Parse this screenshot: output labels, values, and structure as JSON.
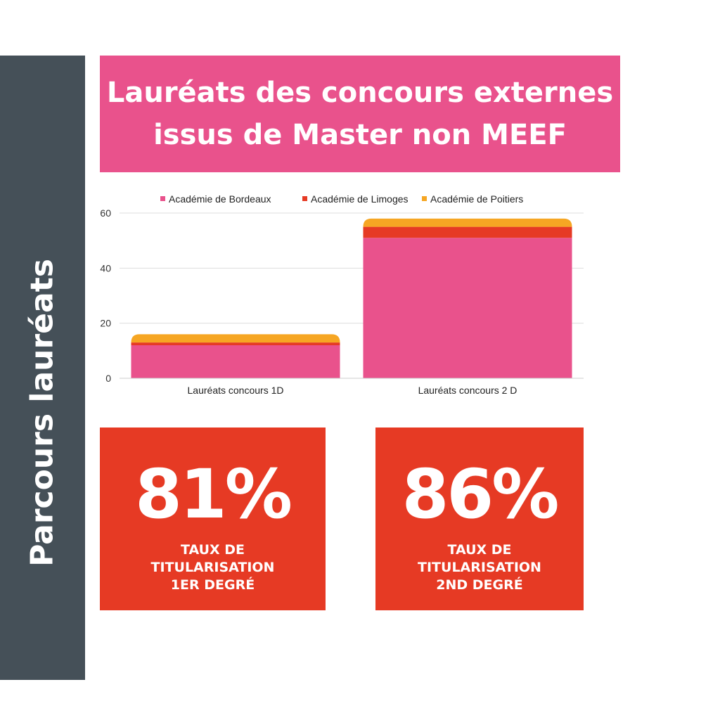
{
  "side_title": "Parcours lauréats",
  "title": {
    "line1": "Lauréats des concours externes",
    "line2": "issus de Master non MEEF"
  },
  "chart_data": {
    "type": "bar",
    "stacked": true,
    "categories": [
      "Lauréats concours 1D",
      "Lauréats concours 2 D"
    ],
    "series": [
      {
        "name": "Académie de Bordeaux",
        "values": [
          12,
          51
        ],
        "color": "#e9528c"
      },
      {
        "name": "Académie de Limoges",
        "values": [
          1,
          4
        ],
        "color": "#e63a24"
      },
      {
        "name": "Académie de Poitiers",
        "values": [
          3,
          3
        ],
        "color": "#f6a623"
      }
    ],
    "ylim": [
      0,
      60
    ],
    "yticks": [
      0,
      20,
      40,
      60
    ],
    "grid": true,
    "legend": "top"
  },
  "stats": [
    {
      "value": "81%",
      "label_lines": [
        "TAUX DE",
        "TITULARISATION",
        "1ER DEGRÉ"
      ]
    },
    {
      "value": "86%",
      "label_lines": [
        "TAUX DE",
        "TITULARISATION",
        "2ND DEGRÉ"
      ]
    }
  ]
}
